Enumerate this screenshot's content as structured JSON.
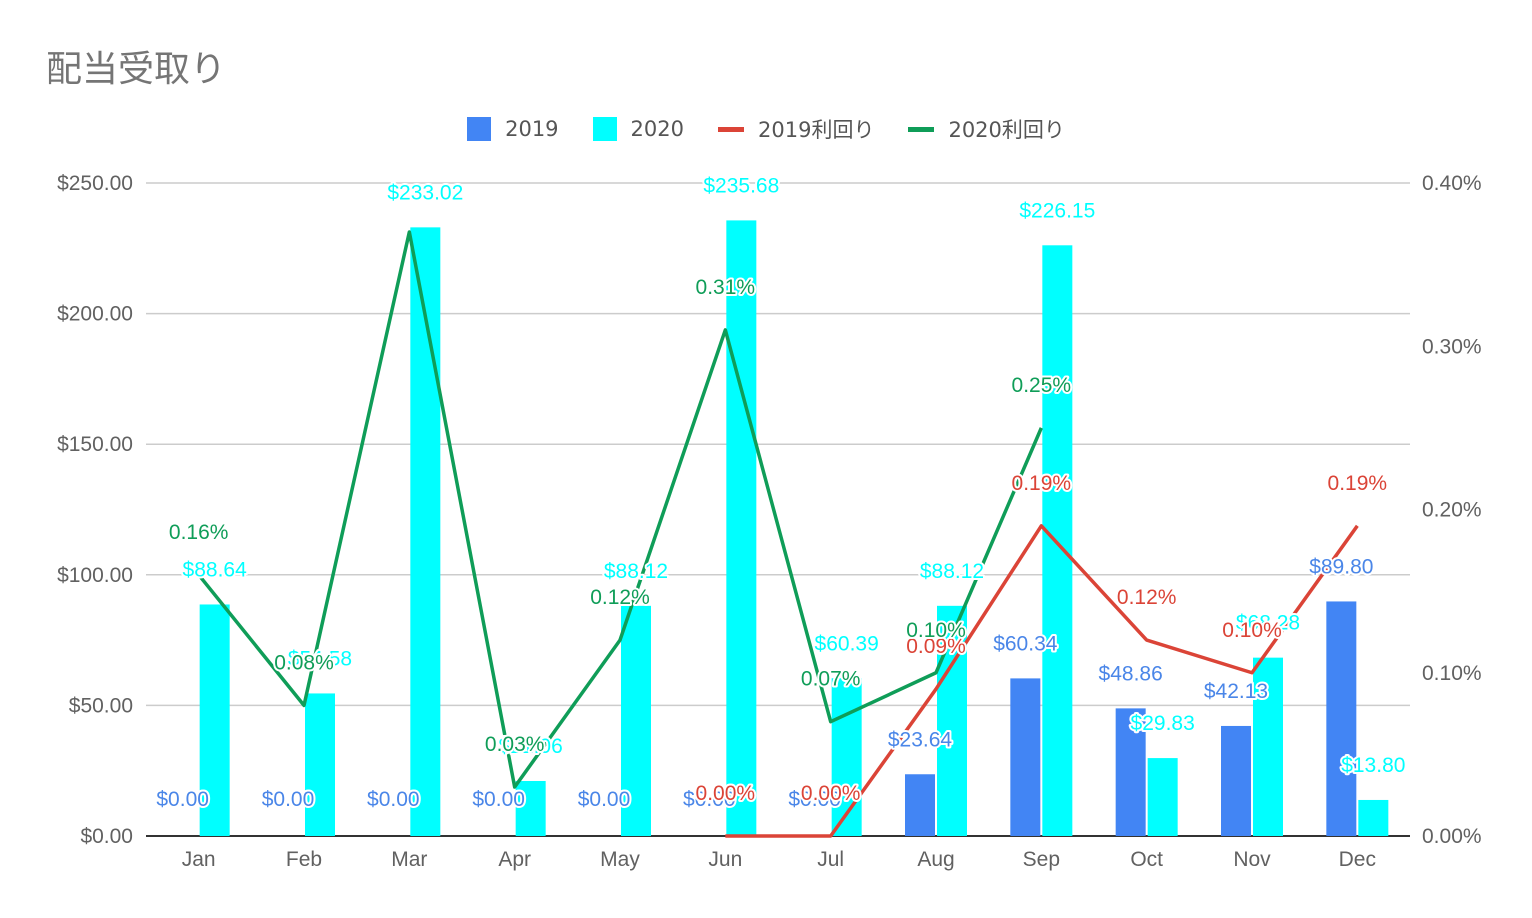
{
  "chart_data": {
    "type": "bar",
    "title": "配当受取り",
    "categories": [
      "Jan",
      "Feb",
      "Mar",
      "Apr",
      "May",
      "Jun",
      "Jul",
      "Aug",
      "Sep",
      "Oct",
      "Nov",
      "Dec"
    ],
    "series": [
      {
        "name": "2019",
        "type": "bar",
        "axis": "left",
        "color": "#4285f4",
        "values": [
          0,
          0,
          0,
          0,
          0,
          0,
          0,
          23.64,
          60.34,
          48.86,
          42.13,
          89.8
        ],
        "labels": [
          "$0.00",
          "$0.00",
          "$0.00",
          "$0.00",
          "$0.00",
          "$0.00",
          "$0.00",
          "$23.64",
          "$60.34",
          "$48.86",
          "$42.13",
          "$89.80"
        ]
      },
      {
        "name": "2020",
        "type": "bar",
        "axis": "left",
        "color": "#00ffff",
        "values": [
          88.64,
          54.58,
          233.02,
          21.06,
          88.12,
          235.68,
          60.39,
          88.12,
          226.15,
          29.83,
          68.28,
          13.8
        ],
        "labels": [
          "$88.64",
          "$54.58",
          "$233.02",
          "$21.06",
          "$88.12",
          "$235.68",
          "$60.39",
          "$88.12",
          "$226.15",
          "$29.83",
          "$68.28",
          "$13.80"
        ]
      },
      {
        "name": "2019利回り",
        "type": "line",
        "axis": "right",
        "color": "#db4437",
        "values": [
          null,
          null,
          null,
          null,
          null,
          0.0,
          0.0,
          0.09,
          0.19,
          0.12,
          0.1,
          0.19
        ],
        "labels": [
          "",
          "",
          "",
          "",
          "",
          "0.00%",
          "0.00%",
          "0.09%",
          "0.19%",
          "0.12%",
          "0.10%",
          "0.19%"
        ]
      },
      {
        "name": "2020利回り",
        "type": "line",
        "axis": "right",
        "color": "#0f9d58",
        "values": [
          0.16,
          0.08,
          0.37,
          0.03,
          0.12,
          0.31,
          0.07,
          0.1,
          0.25,
          null,
          null,
          null
        ],
        "labels": [
          "0.16%",
          "0.08%",
          "",
          "0.03%",
          "0.12%",
          "0.31%",
          "0.07%",
          "0.10%",
          "0.25%",
          "",
          "",
          ""
        ]
      }
    ],
    "left_axis": {
      "min": 0,
      "max": 250,
      "ticks": [
        "$0.00",
        "$50.00",
        "$100.00",
        "$150.00",
        "$200.00",
        "$250.00"
      ]
    },
    "right_axis": {
      "min": 0,
      "max": 0.4,
      "ticks": [
        "0.00%",
        "0.10%",
        "0.20%",
        "0.30%",
        "0.40%"
      ]
    },
    "legend_position": "top",
    "grid": true
  }
}
